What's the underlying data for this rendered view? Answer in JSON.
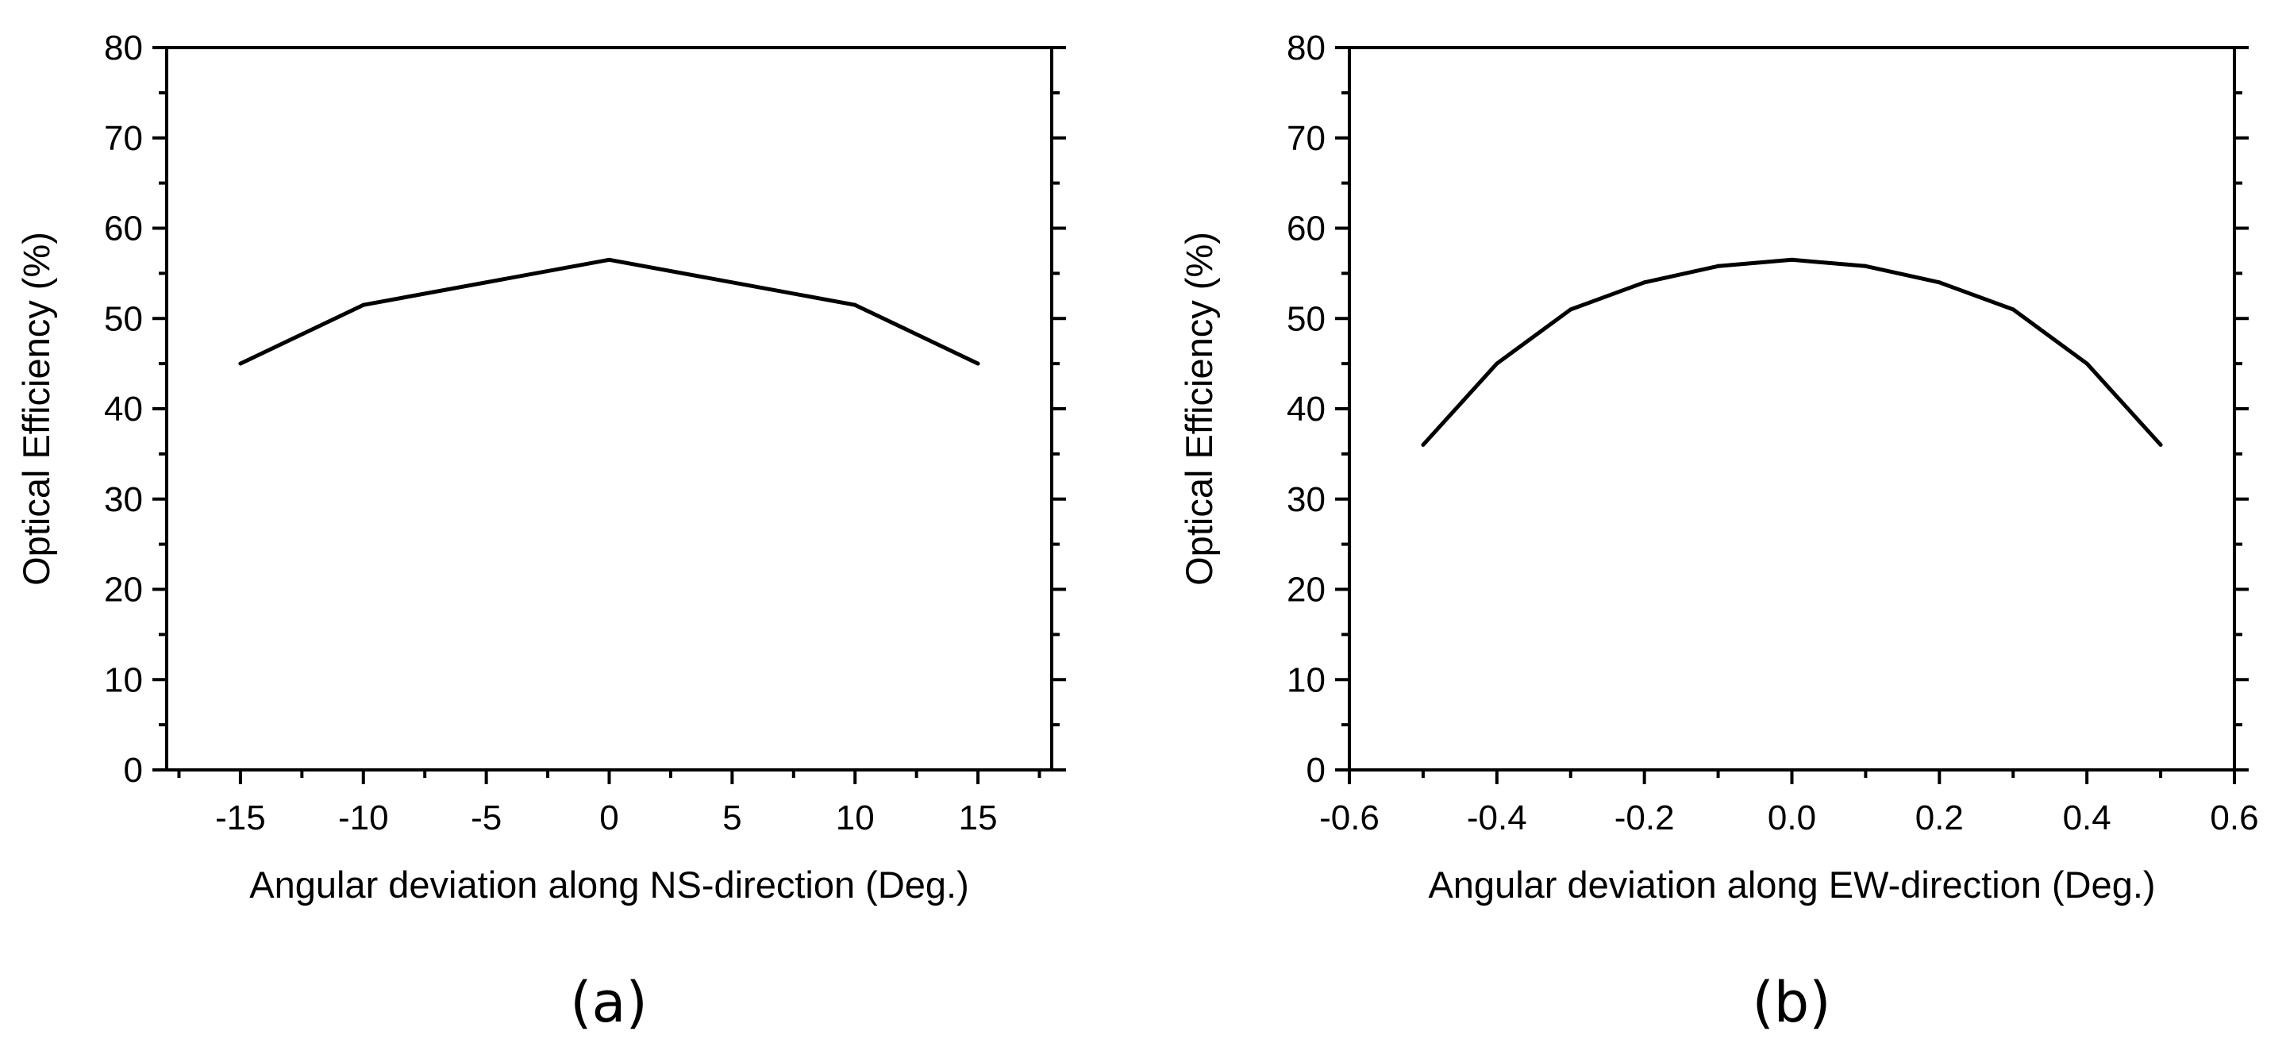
{
  "chart_data": [
    {
      "type": "line",
      "panel_label": "(a)",
      "title": "",
      "xlabel": "Angular deviation along NS-direction (Deg.)",
      "ylabel": "Optical Efficiency (%)",
      "xlim": [
        -18,
        18
      ],
      "ylim": [
        0,
        80
      ],
      "xticks": [
        -15,
        -10,
        -5,
        0,
        5,
        10,
        15
      ],
      "xtick_labels": [
        "-15",
        "-10",
        "-5",
        "0",
        "5",
        "10",
        "15"
      ],
      "yticks": [
        0,
        10,
        20,
        30,
        40,
        50,
        60,
        70,
        80
      ],
      "ytick_labels": [
        "0",
        "10",
        "20",
        "30",
        "40",
        "50",
        "60",
        "70",
        "80"
      ],
      "series": [
        {
          "name": "Optical efficiency",
          "x": [
            -15,
            -10,
            0,
            10,
            15
          ],
          "y": [
            45,
            51.5,
            56.5,
            51.5,
            45
          ]
        }
      ]
    },
    {
      "type": "line",
      "panel_label": "(b)",
      "title": "",
      "xlabel": "Angular deviation along EW-direction (Deg.)",
      "ylabel": "Optical Efficiency (%)",
      "xlim": [
        -0.6,
        0.6
      ],
      "ylim": [
        0,
        80
      ],
      "xticks": [
        -0.6,
        -0.4,
        -0.2,
        0.0,
        0.2,
        0.4,
        0.6
      ],
      "xtick_labels": [
        "-0.6",
        "-0.4",
        "-0.2",
        "0.0",
        "0.2",
        "0.4",
        "0.6"
      ],
      "yticks": [
        0,
        10,
        20,
        30,
        40,
        50,
        60,
        70,
        80
      ],
      "ytick_labels": [
        "0",
        "10",
        "20",
        "30",
        "40",
        "50",
        "60",
        "70",
        "80"
      ],
      "series": [
        {
          "name": "Optical efficiency",
          "x": [
            -0.5,
            -0.4,
            -0.3,
            -0.2,
            -0.1,
            0.0,
            0.1,
            0.2,
            0.3,
            0.4,
            0.5
          ],
          "y": [
            36,
            45,
            51,
            54,
            55.8,
            56.5,
            55.8,
            54,
            51,
            45,
            36
          ]
        }
      ]
    }
  ]
}
